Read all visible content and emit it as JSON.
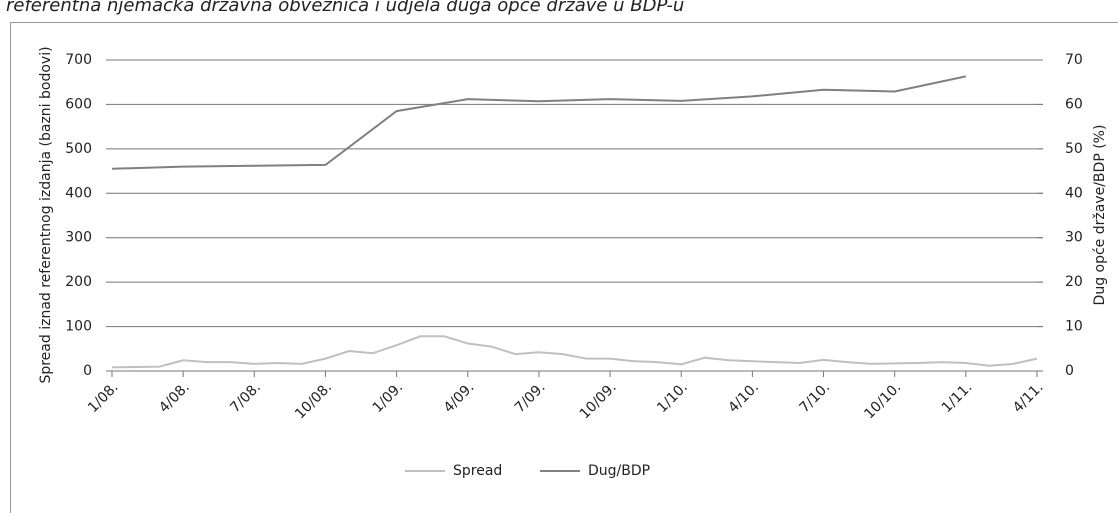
{
  "chart_data": {
    "type": "line",
    "title": "referentna njemačka državna obveznica i udjela duga opće države u BDP-u",
    "y_label": "Spread iznad referentnog izdanja (bazni bodovi)",
    "y2_label": "Dug opće države/BDP (%)",
    "categories": [
      "1/08.",
      "4/08.",
      "7/08.",
      "10/08.",
      "1/09.",
      "4/09.",
      "7/09.",
      "10/09.",
      "1/10.",
      "4/10.",
      "7/10.",
      "10/10.",
      "1/11.",
      "4/11."
    ],
    "ylim": [
      0,
      700
    ],
    "yticks": [
      0,
      100,
      200,
      300,
      400,
      500,
      600,
      700
    ],
    "y2lim": [
      0,
      70
    ],
    "y2ticks": [
      0,
      10,
      20,
      30,
      40,
      50,
      60,
      70
    ],
    "grid": true,
    "legend": "bottom",
    "series": [
      {
        "name": "Spread",
        "color": "#c0c0c0",
        "x": [
          "1/08.",
          "2/08.",
          "3/08.",
          "4/08.",
          "5/08.",
          "6/08.",
          "7/08.",
          "8/08.",
          "9/08.",
          "10/08.",
          "11/08.",
          "12/08.",
          "1/09.",
          "2/09.",
          "3/09.",
          "4/09.",
          "5/09.",
          "6/09.",
          "7/09.",
          "8/09.",
          "9/09.",
          "10/09.",
          "11/09.",
          "12/09.",
          "1/10.",
          "2/10.",
          "3/10.",
          "4/10.",
          "5/10.",
          "6/10.",
          "7/10.",
          "8/10.",
          "9/10.",
          "10/10.",
          "11/10.",
          "12/10.",
          "1/11.",
          "2/11.",
          "3/11.",
          "4/11."
        ],
        "values": [
          8,
          9,
          10,
          24,
          20,
          20,
          16,
          18,
          16,
          28,
          45,
          40,
          58,
          78,
          78,
          62,
          55,
          38,
          42,
          38,
          28,
          28,
          22,
          20,
          15,
          30,
          24,
          22,
          20,
          18,
          25,
          20,
          16,
          17,
          18,
          20,
          18,
          12,
          16,
          28
        ]
      },
      {
        "name": "Dug/BDP",
        "color": "#808080",
        "axis": "y2",
        "x": [
          "1/08.",
          "4/08.",
          "7/08.",
          "10/08.",
          "1/09.",
          "4/09.",
          "7/09.",
          "10/09.",
          "1/10.",
          "4/10.",
          "7/10.",
          "10/10.",
          "1/11."
        ],
        "values": [
          45.5,
          46,
          46.2,
          46.4,
          58.5,
          61.2,
          60.7,
          61.2,
          60.8,
          61.8,
          63.3,
          62.9,
          66.3
        ]
      }
    ]
  }
}
